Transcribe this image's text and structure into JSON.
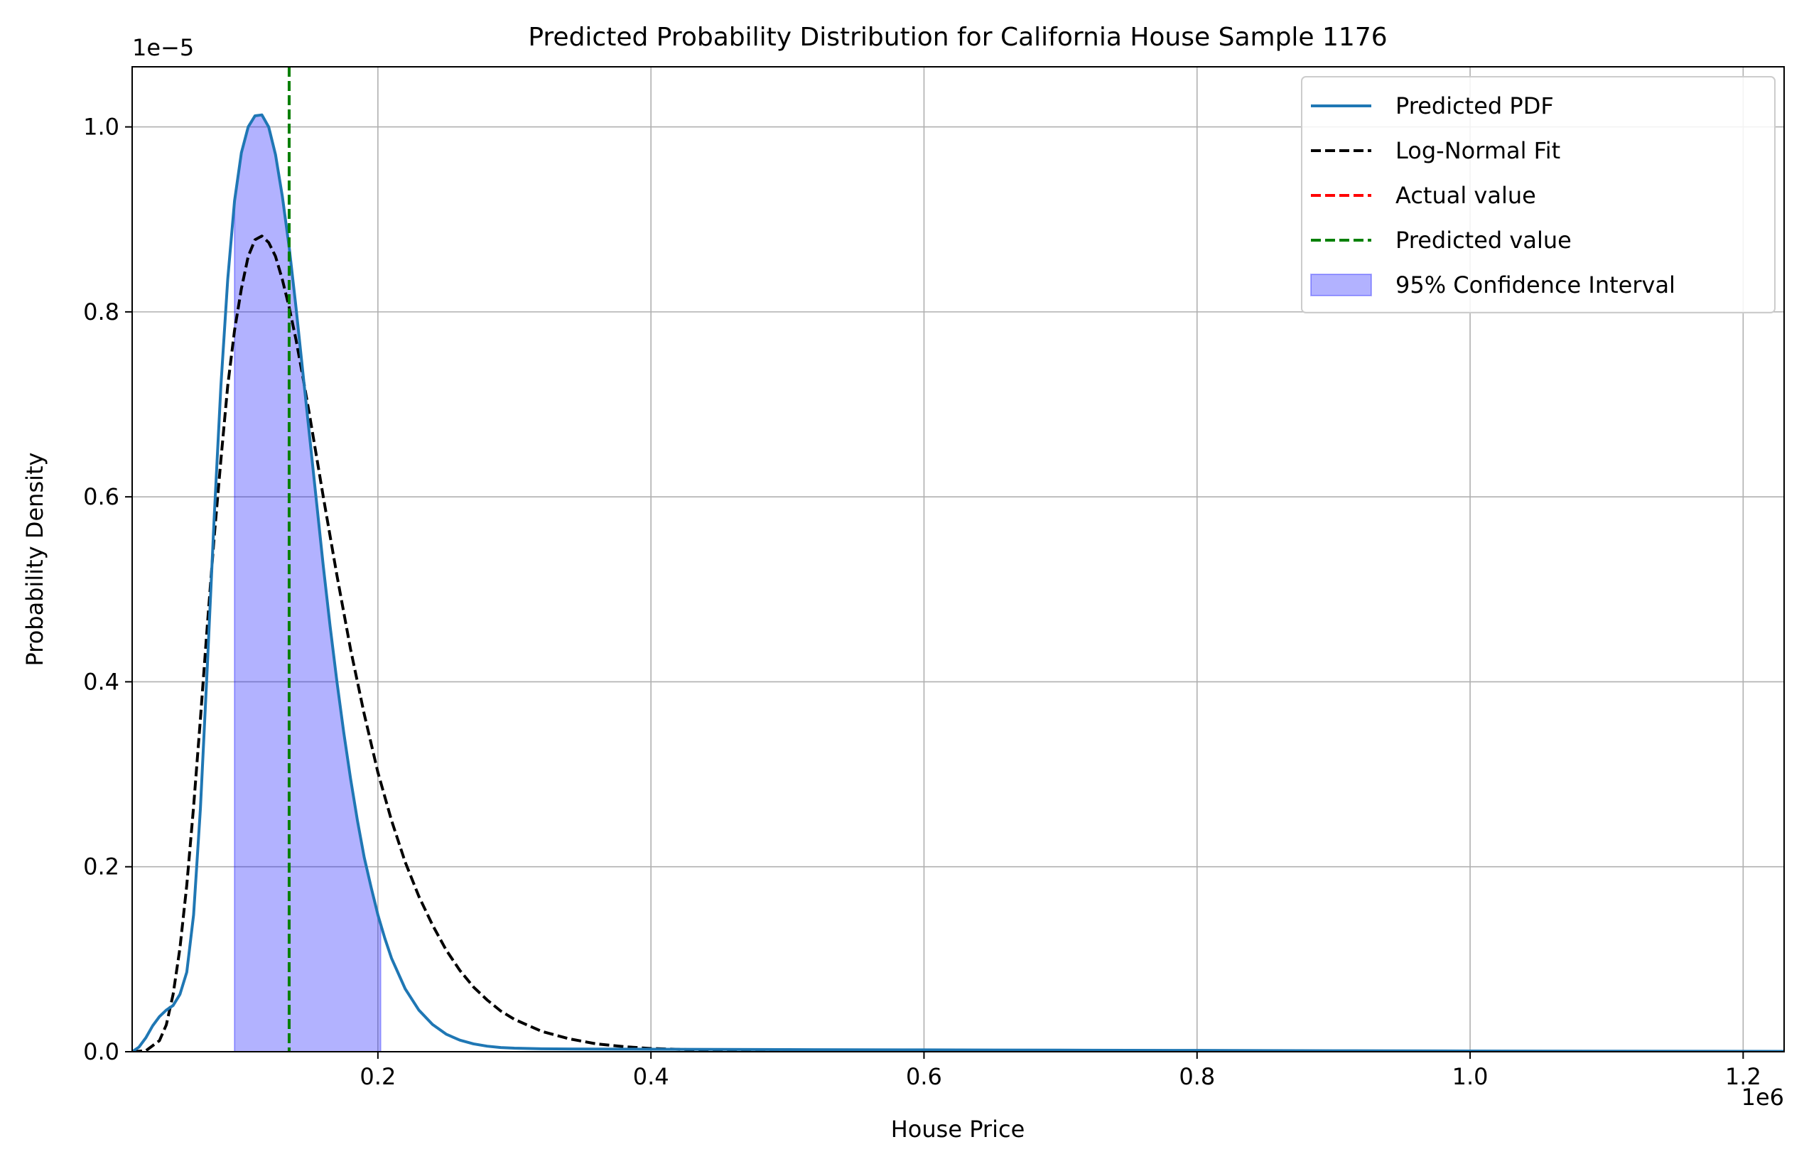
{
  "chart_data": {
    "type": "line",
    "title": "Predicted Probability Distribution for California House Sample 1176",
    "xlabel": "House Price",
    "ylabel": "Probability Density",
    "x_offset_label": "1e6",
    "y_offset_label": "1e−5",
    "xlim": [
      20000,
      1230000
    ],
    "ylim": [
      0,
      1.065e-05
    ],
    "x_ticks": [
      200000,
      400000,
      600000,
      800000,
      1000000,
      1200000
    ],
    "x_tick_labels": [
      "0.2",
      "0.4",
      "0.6",
      "0.8",
      "1.0",
      "1.2"
    ],
    "y_ticks": [
      0,
      2e-06,
      4e-06,
      6e-06,
      8e-06,
      1e-05
    ],
    "y_tick_labels": [
      "0.0",
      "0.2",
      "0.4",
      "0.6",
      "0.8",
      "1.0"
    ],
    "grid": true,
    "legend_position": "top-right",
    "series": [
      {
        "name": "Predicted PDF",
        "style": "solid",
        "color": "#1f77b4",
        "x": [
          20000,
          25000,
          30000,
          35000,
          40000,
          45000,
          50000,
          55000,
          60000,
          65000,
          70000,
          75000,
          80000,
          85000,
          90000,
          95000,
          100000,
          105000,
          110000,
          115000,
          120000,
          125000,
          130000,
          135000,
          140000,
          145000,
          150000,
          155000,
          160000,
          165000,
          170000,
          175000,
          180000,
          185000,
          190000,
          195000,
          200000,
          205000,
          210000,
          220000,
          230000,
          240000,
          250000,
          260000,
          270000,
          280000,
          290000,
          300000,
          320000,
          340000,
          360000,
          380000,
          400000,
          450000,
          500000,
          600000,
          700000,
          800000,
          900000,
          1000000,
          1100000,
          1230000
        ],
        "y": [
          0,
          5e-08,
          1.5e-07,
          2.8e-07,
          3.8e-07,
          4.5e-07,
          5e-07,
          6.2e-07,
          8.6e-07,
          1.48e-06,
          2.63e-06,
          4.15e-06,
          5.75e-06,
          7.2e-06,
          8.35e-06,
          9.2e-06,
          9.72e-06,
          1e-05,
          1.012e-05,
          1.013e-05,
          1e-05,
          9.7e-06,
          9.25e-06,
          8.7e-06,
          8.05e-06,
          7.35e-06,
          6.65e-06,
          5.95e-06,
          5.25e-06,
          4.6e-06,
          4e-06,
          3.45e-06,
          2.95e-06,
          2.5e-06,
          2.1e-06,
          1.78e-06,
          1.48e-06,
          1.23e-06,
          1.01e-06,
          6.8e-07,
          4.5e-07,
          2.95e-07,
          1.9e-07,
          1.25e-07,
          8.5e-08,
          6e-08,
          4.5e-08,
          3.8e-08,
          3.2e-08,
          3e-08,
          2.9e-08,
          2.8e-08,
          2.7e-08,
          2.5e-08,
          2.3e-08,
          2e-08,
          1.7e-08,
          1.4e-08,
          1.1e-08,
          8e-09,
          6e-09,
          4e-09
        ]
      },
      {
        "name": "Log-Normal Fit",
        "style": "dashed",
        "color": "#000000",
        "x": [
          20000,
          30000,
          40000,
          45000,
          50000,
          55000,
          60000,
          65000,
          70000,
          75000,
          80000,
          85000,
          90000,
          95000,
          100000,
          105000,
          110000,
          115000,
          120000,
          125000,
          130000,
          135000,
          140000,
          145000,
          150000,
          160000,
          170000,
          180000,
          190000,
          200000,
          210000,
          220000,
          230000,
          240000,
          250000,
          260000,
          270000,
          280000,
          290000,
          300000,
          320000,
          340000,
          360000,
          380000,
          400000,
          450000,
          500000,
          600000,
          700000,
          800000,
          1000000,
          1230000
        ],
        "y": [
          0,
          1e-08,
          1.2e-07,
          2.9e-07,
          6.2e-07,
          1.12e-06,
          1.8e-06,
          2.65e-06,
          3.6e-06,
          4.6e-06,
          5.55e-06,
          6.4e-06,
          7.2e-06,
          7.8e-06,
          8.25e-06,
          8.6e-06,
          8.78e-06,
          8.82e-06,
          8.75e-06,
          8.6e-06,
          8.35e-06,
          8.05e-06,
          7.7e-06,
          7.3e-06,
          6.88e-06,
          6e-06,
          5.15e-06,
          4.35e-06,
          3.65e-06,
          3.02e-06,
          2.5e-06,
          2.05e-06,
          1.68e-06,
          1.37e-06,
          1.1e-06,
          8.8e-07,
          7e-07,
          5.6e-07,
          4.4e-07,
          3.5e-07,
          2.2e-07,
          1.4e-07,
          8.5e-08,
          5.5e-08,
          3.5e-08,
          1.2e-08,
          5e-09,
          1e-09,
          0,
          0,
          0,
          0
        ]
      }
    ],
    "reference_lines": [
      {
        "name": "Actual value",
        "x": 135000,
        "color": "#ff0000",
        "style": "dashed"
      },
      {
        "name": "Predicted value",
        "x": 135000,
        "color": "#008000",
        "style": "dashed"
      }
    ],
    "confidence_interval": {
      "name": "95% Confidence Interval",
      "lower": 95000,
      "upper": 202000,
      "color": "#0000ff",
      "alpha": 0.3
    }
  }
}
